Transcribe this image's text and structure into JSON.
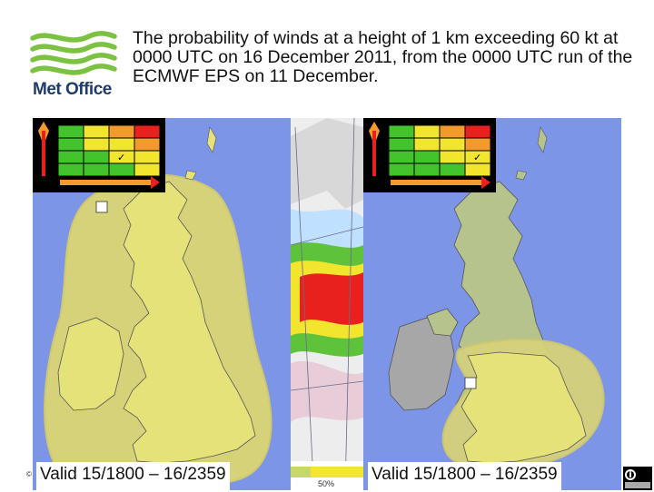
{
  "logo": {
    "text": "Met Office",
    "colors": {
      "green": "#7cc242",
      "navy": "#1f3a6d"
    }
  },
  "title": "The probability of winds at a height of 1 km exceeding 60 kt at 0000 UTC on 16 December 2011, from the 0000 UTC run of the ECMWF EPS on 11 December.",
  "left_map": {
    "caption": "Valid 15/1800 – 16/2359",
    "risk_cell": "✓"
  },
  "right_map": {
    "caption": "Valid 15/1800 – 16/2359",
    "risk_cell": "✓"
  },
  "middle_map": {
    "scale_label": "50%"
  },
  "footer": {
    "copyright_mark": "©",
    "license_icon": "cc-by-icon"
  },
  "colors": {
    "sea": "#7c95e6",
    "warning_area": "#d6d27a",
    "land_yellow": "#e6e27a",
    "land_grey": "#a7a7a7",
    "land_green": "#b7c38c",
    "matrix_green": "#44c42c",
    "matrix_yellow": "#f1e52d",
    "matrix_orange": "#f29a2c",
    "matrix_red": "#e8211f"
  }
}
